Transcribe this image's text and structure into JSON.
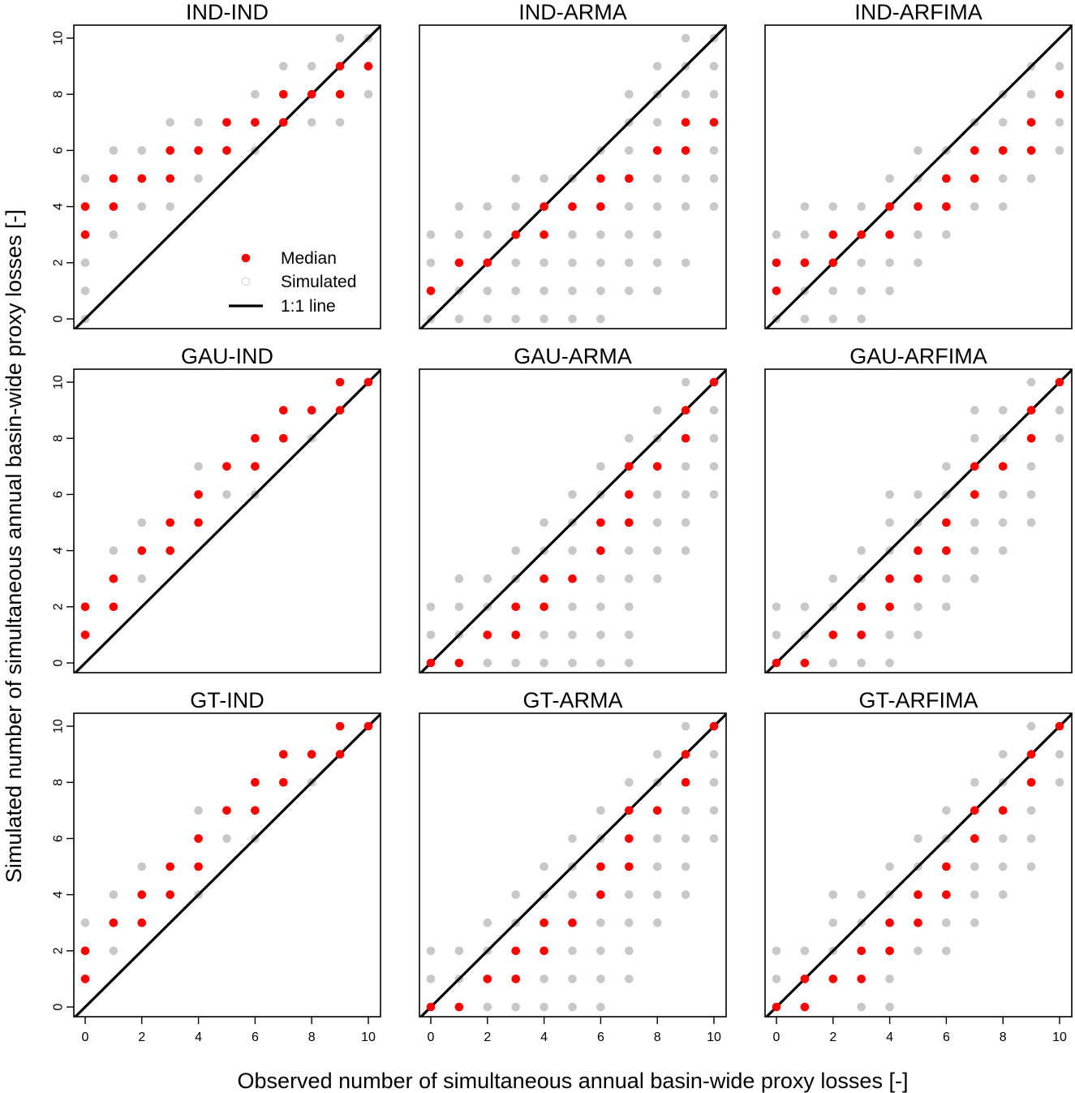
{
  "figure": {
    "xlabel": "Observed number of simultaneous annual basin-wide proxy losses [-]",
    "ylabel": "Simulated number of simultaneous annual basin-wide proxy losses [-]"
  },
  "legend": {
    "items": [
      {
        "label": "Median",
        "marker": "filled-circle",
        "color": "#ff0000"
      },
      {
        "label": "Simulated",
        "marker": "open-circle",
        "color": "#d3d3d3"
      },
      {
        "label": "1:1 line",
        "marker": "line",
        "color": "#000000"
      }
    ],
    "placement": "bottom-right of first panel"
  },
  "colors": {
    "median": "#ff0000",
    "simulated": "#c8c8c8",
    "line": "#000000"
  },
  "chart_data": [
    {
      "type": "scatter",
      "title": "IND-IND",
      "xlim": [
        0,
        10
      ],
      "ylim": [
        0,
        10
      ],
      "ticks": [
        0,
        2,
        4,
        6,
        8,
        10
      ],
      "simulated": {
        "0": [
          0,
          1,
          2,
          3,
          4,
          5
        ],
        "1": [
          3,
          4,
          5,
          6
        ],
        "2": [
          4,
          5,
          6
        ],
        "3": [
          4,
          5,
          6,
          7
        ],
        "4": [
          5,
          6,
          7
        ],
        "5": [
          6,
          7
        ],
        "6": [
          6,
          7,
          8
        ],
        "7": [
          7,
          8,
          9
        ],
        "8": [
          7,
          8,
          9
        ],
        "9": [
          7,
          8,
          9,
          10
        ],
        "10": [
          8,
          9,
          10
        ]
      },
      "median": {
        "0": [
          3,
          4
        ],
        "1": [
          4,
          5
        ],
        "2": [
          5
        ],
        "3": [
          5,
          6
        ],
        "4": [
          6
        ],
        "5": [
          6,
          7
        ],
        "6": [
          7
        ],
        "7": [
          7,
          8
        ],
        "8": [
          8
        ],
        "9": [
          8,
          9
        ],
        "10": [
          9
        ]
      }
    },
    {
      "type": "scatter",
      "title": "IND-ARMA",
      "xlim": [
        0,
        10
      ],
      "ylim": [
        0,
        10
      ],
      "ticks": [
        0,
        2,
        4,
        6,
        8,
        10
      ],
      "simulated": {
        "0": [
          0,
          1,
          2,
          3
        ],
        "1": [
          0,
          1,
          2,
          3,
          4
        ],
        "2": [
          0,
          1,
          2,
          3,
          4
        ],
        "3": [
          0,
          1,
          2,
          3,
          4,
          5
        ],
        "4": [
          0,
          1,
          2,
          3,
          4,
          5
        ],
        "5": [
          0,
          1,
          2,
          3,
          4,
          5
        ],
        "6": [
          0,
          1,
          2,
          3,
          4,
          5,
          6
        ],
        "7": [
          1,
          2,
          3,
          4,
          5,
          6,
          7,
          8
        ],
        "8": [
          1,
          2,
          3,
          4,
          5,
          6,
          7,
          8,
          9
        ],
        "9": [
          2,
          4,
          5,
          6,
          7,
          8,
          9,
          10
        ],
        "10": [
          4,
          5,
          6,
          7,
          8,
          9,
          10
        ]
      },
      "median": {
        "0": [
          1
        ],
        "1": [
          2
        ],
        "2": [
          2
        ],
        "3": [
          3
        ],
        "4": [
          3,
          4
        ],
        "5": [
          4
        ],
        "6": [
          4,
          5
        ],
        "7": [
          5
        ],
        "8": [
          6
        ],
        "9": [
          6,
          7
        ],
        "10": [
          7
        ]
      }
    },
    {
      "type": "scatter",
      "title": "IND-ARFIMA",
      "xlim": [
        0,
        10
      ],
      "ylim": [
        0,
        10
      ],
      "ticks": [
        0,
        2,
        4,
        6,
        8,
        10
      ],
      "simulated": {
        "0": [
          0,
          1,
          2,
          3
        ],
        "1": [
          0,
          1,
          2,
          3,
          4
        ],
        "2": [
          0,
          1,
          2,
          3,
          4
        ],
        "3": [
          0,
          1,
          2,
          3,
          4
        ],
        "4": [
          1,
          2,
          3,
          4,
          5
        ],
        "5": [
          2,
          3,
          4,
          5,
          6
        ],
        "6": [
          3,
          4,
          5,
          6
        ],
        "7": [
          4,
          5,
          6,
          7
        ],
        "8": [
          4,
          5,
          6,
          7,
          8
        ],
        "9": [
          5,
          6,
          7,
          8,
          9
        ],
        "10": [
          6,
          7,
          8,
          9
        ]
      },
      "median": {
        "0": [
          1,
          2
        ],
        "1": [
          2
        ],
        "2": [
          2,
          3
        ],
        "3": [
          3
        ],
        "4": [
          3,
          4
        ],
        "5": [
          4
        ],
        "6": [
          4,
          5
        ],
        "7": [
          5,
          6
        ],
        "8": [
          6
        ],
        "9": [
          6,
          7
        ],
        "10": [
          8
        ]
      }
    },
    {
      "type": "scatter",
      "title": "GAU-IND",
      "xlim": [
        0,
        10
      ],
      "ylim": [
        0,
        10
      ],
      "ticks": [
        0,
        2,
        4,
        6,
        8,
        10
      ],
      "simulated": {
        "0": [
          1,
          2
        ],
        "1": [
          2,
          3,
          4
        ],
        "2": [
          3,
          4,
          5
        ],
        "3": [
          4,
          5
        ],
        "4": [
          5,
          6,
          7
        ],
        "5": [
          6,
          7
        ],
        "6": [
          6,
          7,
          8
        ],
        "7": [
          8,
          9
        ],
        "8": [
          8,
          9
        ],
        "9": [
          9,
          10
        ],
        "10": [
          10
        ]
      },
      "median": {
        "0": [
          1,
          2
        ],
        "1": [
          2,
          3
        ],
        "2": [
          4
        ],
        "3": [
          4,
          5
        ],
        "4": [
          5,
          6
        ],
        "5": [
          7
        ],
        "6": [
          7,
          8
        ],
        "7": [
          8,
          9
        ],
        "8": [
          9
        ],
        "9": [
          9,
          10
        ],
        "10": [
          10
        ]
      }
    },
    {
      "type": "scatter",
      "title": "GAU-ARMA",
      "xlim": [
        0,
        10
      ],
      "ylim": [
        0,
        10
      ],
      "ticks": [
        0,
        2,
        4,
        6,
        8,
        10
      ],
      "simulated": {
        "0": [
          0,
          1,
          2
        ],
        "1": [
          0,
          1,
          2,
          3
        ],
        "2": [
          0,
          1,
          2,
          3
        ],
        "3": [
          0,
          1,
          2,
          3,
          4
        ],
        "4": [
          0,
          1,
          2,
          3,
          4,
          5
        ],
        "5": [
          0,
          1,
          2,
          3,
          4,
          5,
          6
        ],
        "6": [
          0,
          1,
          2,
          3,
          4,
          5,
          6,
          7
        ],
        "7": [
          0,
          1,
          2,
          3,
          4,
          5,
          6,
          7,
          8
        ],
        "8": [
          3,
          4,
          5,
          6,
          7,
          8,
          9
        ],
        "9": [
          4,
          5,
          6,
          7,
          8,
          9,
          10
        ],
        "10": [
          6,
          7,
          8,
          9,
          10
        ]
      },
      "median": {
        "0": [
          0
        ],
        "1": [
          0
        ],
        "2": [
          1
        ],
        "3": [
          1,
          2
        ],
        "4": [
          2,
          3
        ],
        "5": [
          3
        ],
        "6": [
          4,
          5
        ],
        "7": [
          5,
          6,
          7
        ],
        "8": [
          7
        ],
        "9": [
          8,
          9
        ],
        "10": [
          10
        ]
      }
    },
    {
      "type": "scatter",
      "title": "GAU-ARFIMA",
      "xlim": [
        0,
        10
      ],
      "ylim": [
        0,
        10
      ],
      "ticks": [
        0,
        2,
        4,
        6,
        8,
        10
      ],
      "simulated": {
        "0": [
          0,
          1,
          2
        ],
        "1": [
          0,
          1,
          2
        ],
        "2": [
          0,
          1,
          2,
          3
        ],
        "3": [
          0,
          1,
          2,
          3,
          4
        ],
        "4": [
          0,
          1,
          2,
          3,
          4,
          5,
          6
        ],
        "5": [
          1,
          2,
          3,
          4,
          5,
          6
        ],
        "6": [
          2,
          3,
          4,
          5,
          6,
          7
        ],
        "7": [
          3,
          4,
          5,
          6,
          7,
          8,
          9
        ],
        "8": [
          4,
          5,
          6,
          7,
          8,
          9
        ],
        "9": [
          5,
          6,
          7,
          8,
          9,
          10
        ],
        "10": [
          8,
          9,
          10
        ]
      },
      "median": {
        "0": [
          0
        ],
        "1": [
          0
        ],
        "2": [
          1
        ],
        "3": [
          1,
          2
        ],
        "4": [
          2,
          3
        ],
        "5": [
          3,
          4
        ],
        "6": [
          4,
          5
        ],
        "7": [
          6,
          7
        ],
        "8": [
          7
        ],
        "9": [
          8,
          9
        ],
        "10": [
          10
        ]
      }
    },
    {
      "type": "scatter",
      "title": "GT-IND",
      "xlim": [
        0,
        10
      ],
      "ylim": [
        0,
        10
      ],
      "ticks": [
        0,
        2,
        4,
        6,
        8,
        10
      ],
      "simulated": {
        "0": [
          1,
          2,
          3
        ],
        "1": [
          2,
          3,
          4
        ],
        "2": [
          3,
          4,
          5
        ],
        "3": [
          4,
          5
        ],
        "4": [
          4,
          5,
          6,
          7
        ],
        "5": [
          6,
          7
        ],
        "6": [
          6,
          7,
          8
        ],
        "7": [
          8,
          9
        ],
        "8": [
          8,
          9
        ],
        "9": [
          9,
          10
        ],
        "10": [
          10
        ]
      },
      "median": {
        "0": [
          1,
          2
        ],
        "1": [
          3
        ],
        "2": [
          3,
          4
        ],
        "3": [
          4,
          5
        ],
        "4": [
          5,
          6
        ],
        "5": [
          7
        ],
        "6": [
          7,
          8
        ],
        "7": [
          8,
          9
        ],
        "8": [
          9
        ],
        "9": [
          9,
          10
        ],
        "10": [
          10
        ]
      }
    },
    {
      "type": "scatter",
      "title": "GT-ARMA",
      "xlim": [
        0,
        10
      ],
      "ylim": [
        0,
        10
      ],
      "ticks": [
        0,
        2,
        4,
        6,
        8,
        10
      ],
      "simulated": {
        "0": [
          0,
          1,
          2
        ],
        "1": [
          0,
          1,
          2
        ],
        "2": [
          0,
          1,
          2,
          3
        ],
        "3": [
          0,
          1,
          2,
          3,
          4
        ],
        "4": [
          0,
          1,
          2,
          3,
          4,
          5
        ],
        "5": [
          0,
          1,
          2,
          3,
          4,
          5,
          6
        ],
        "6": [
          0,
          1,
          2,
          3,
          4,
          5,
          6,
          7
        ],
        "7": [
          1,
          2,
          3,
          4,
          5,
          6,
          7,
          8
        ],
        "8": [
          3,
          4,
          5,
          6,
          7,
          8,
          9
        ],
        "9": [
          4,
          5,
          6,
          7,
          8,
          9,
          10
        ],
        "10": [
          6,
          7,
          8,
          9,
          10
        ]
      },
      "median": {
        "0": [
          0
        ],
        "1": [
          0
        ],
        "2": [
          1
        ],
        "3": [
          1,
          2
        ],
        "4": [
          2,
          3
        ],
        "5": [
          3
        ],
        "6": [
          4,
          5
        ],
        "7": [
          5,
          6,
          7
        ],
        "8": [
          7
        ],
        "9": [
          8,
          9
        ],
        "10": [
          10
        ]
      }
    },
    {
      "type": "scatter",
      "title": "GT-ARFIMA",
      "xlim": [
        0,
        10
      ],
      "ylim": [
        0,
        10
      ],
      "ticks": [
        0,
        2,
        4,
        6,
        8,
        10
      ],
      "simulated": {
        "0": [
          0,
          1,
          2
        ],
        "1": [
          0,
          1,
          2
        ],
        "2": [
          1,
          2,
          3,
          4
        ],
        "3": [
          0,
          1,
          2,
          3,
          4
        ],
        "4": [
          0,
          1,
          2,
          3,
          4,
          5
        ],
        "5": [
          2,
          3,
          4,
          5,
          6
        ],
        "6": [
          2,
          3,
          4,
          5,
          6,
          7
        ],
        "7": [
          3,
          4,
          5,
          6,
          7,
          8
        ],
        "8": [
          4,
          5,
          6,
          7,
          8,
          9
        ],
        "9": [
          5,
          6,
          7,
          8,
          9,
          10
        ],
        "10": [
          8,
          9,
          10
        ]
      },
      "median": {
        "0": [
          0
        ],
        "1": [
          0,
          1
        ],
        "2": [
          1
        ],
        "3": [
          1,
          2
        ],
        "4": [
          2,
          3
        ],
        "5": [
          3,
          4
        ],
        "6": [
          4,
          5
        ],
        "7": [
          6,
          7
        ],
        "8": [
          7
        ],
        "9": [
          8,
          9
        ],
        "10": [
          10
        ]
      }
    }
  ]
}
